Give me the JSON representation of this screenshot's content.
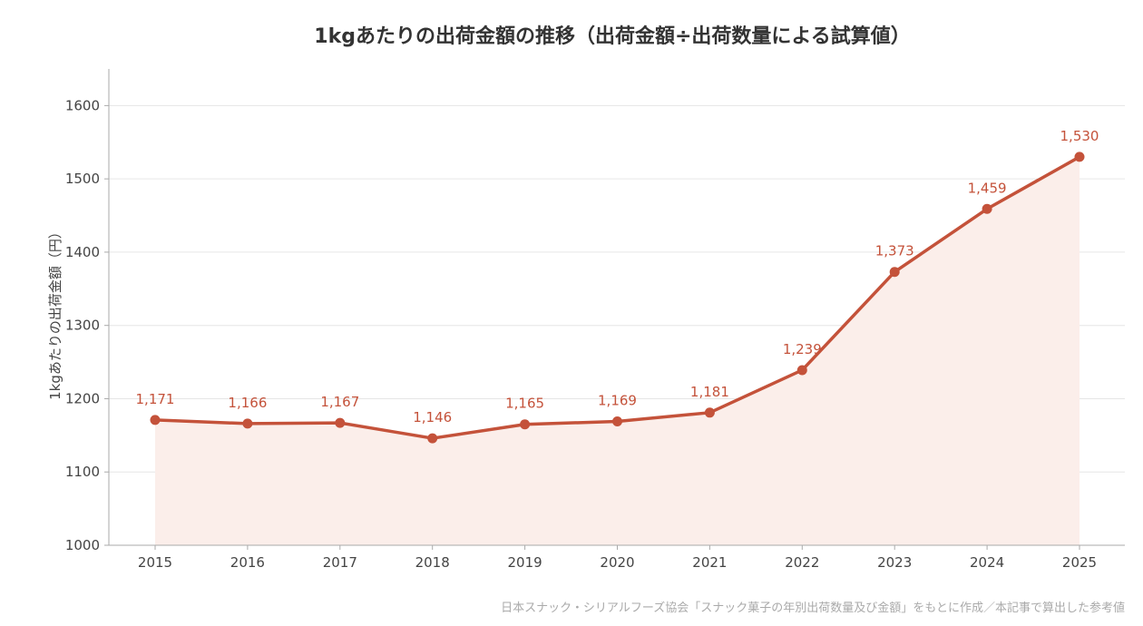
{
  "chart_data": {
    "type": "area",
    "title": "1kgあたりの出荷金額の推移（出荷金額÷出荷数量による試算値）",
    "xlabel": "",
    "ylabel": "1kgあたりの出荷金額（円）",
    "x": [
      "2015",
      "2016",
      "2017",
      "2018",
      "2019",
      "2020",
      "2021",
      "2022",
      "2023",
      "2024",
      "2025"
    ],
    "series": [
      {
        "values": [
          1171,
          1166,
          1167,
          1146,
          1165,
          1169,
          1181,
          1239,
          1373,
          1459,
          1530
        ],
        "labels": [
          "1,171",
          "1,166",
          "1,167",
          "1,146",
          "1,165",
          "1,169",
          "1,181",
          "1,239",
          "1,373",
          "1,459",
          "1,530"
        ]
      }
    ],
    "yticks": [
      "1000",
      "1100",
      "1200",
      "1300",
      "1400",
      "1500",
      "1600"
    ],
    "ylim": [
      1000,
      1650
    ],
    "grid": "horizontal",
    "legend": "none",
    "colors": {
      "line": "#c4523a",
      "area": "#fbeeea",
      "label": "#c4523a",
      "grid": "#e6e6e6",
      "axis": "#aaaaaa"
    }
  },
  "source_note": "日本スナック・シリアルフーズ協会「スナック菓子の年別出荷数量及び金額」をもとに作成／本記事で算出した参考値"
}
